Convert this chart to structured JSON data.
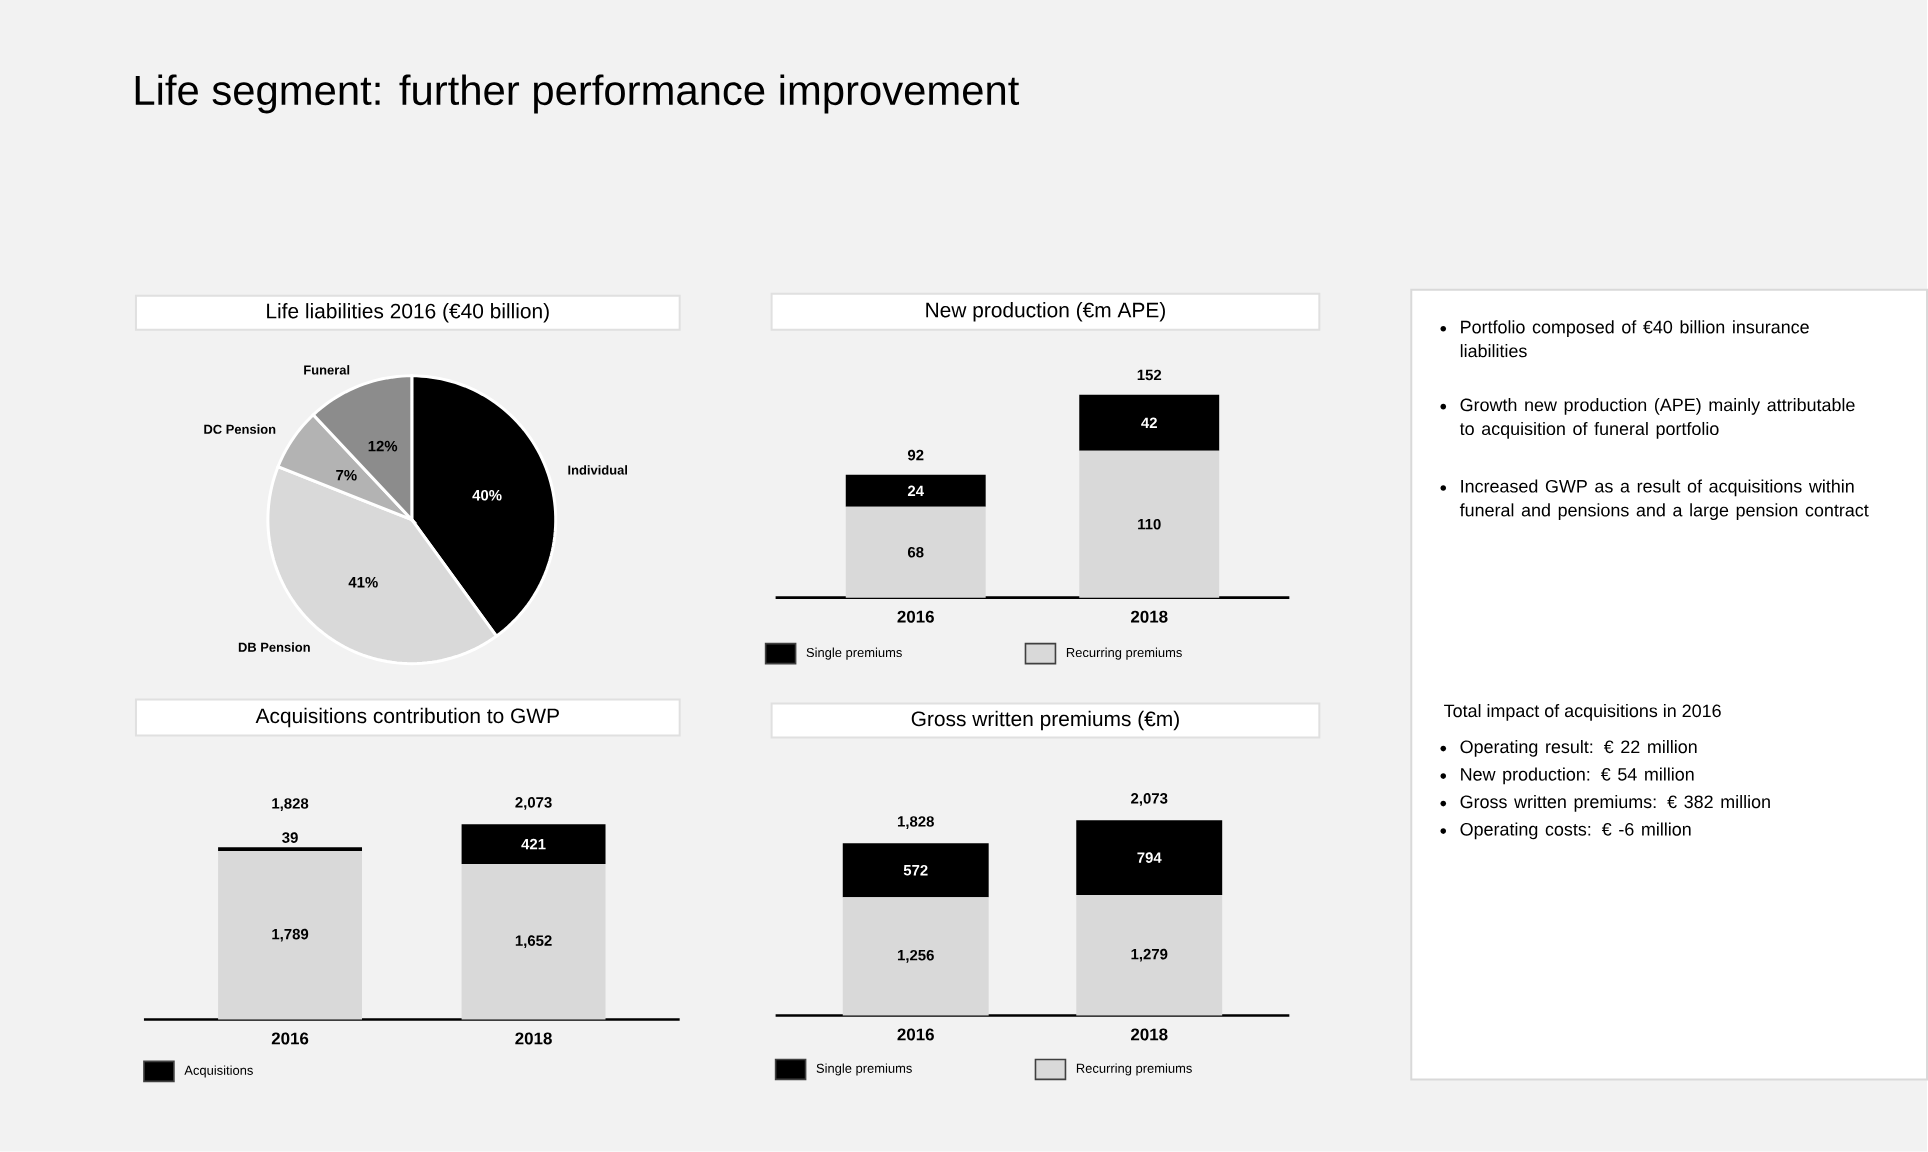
{
  "chart_data": [
    {
      "type": "pie",
      "title": "Life liabilities 2016 (€40 billion)",
      "categories": [
        "Individual",
        "DB Pension",
        "DC Pension",
        "Funeral"
      ],
      "values": [
        40,
        41,
        7,
        12
      ],
      "colors": [
        "#000000",
        "#d9d9d9",
        "#b3b3b3",
        "#8c8c8c"
      ],
      "value_labels": [
        "40%",
        "41%",
        "7%",
        "12%"
      ]
    },
    {
      "type": "bar",
      "title": "New production (€m APE)",
      "categories": [
        "2016",
        "2018"
      ],
      "stacked": true,
      "legend": "bottom",
      "totals": [
        "92",
        "152"
      ],
      "series": [
        {
          "name": "Recurring premiums",
          "color": "#d9d9d9",
          "values": [
            68,
            110
          ],
          "value_labels": [
            "68",
            "110"
          ]
        },
        {
          "name": "Single premiums",
          "color": "#000000",
          "values": [
            24,
            42
          ],
          "value_labels": [
            "24",
            "42"
          ]
        }
      ]
    },
    {
      "type": "bar",
      "title": "Acquisitions contribution to GWP",
      "categories": [
        "2016",
        "2018"
      ],
      "stacked": true,
      "legend": "bottom",
      "totals": [
        "1,828",
        "2,073"
      ],
      "series": [
        {
          "color": "#d9d9d9",
          "values": [
            1789,
            1652
          ],
          "value_labels": [
            "1,789",
            "1,652"
          ]
        },
        {
          "name": "Acquisitions",
          "color": "#000000",
          "values": [
            39,
            421
          ],
          "value_labels": [
            "39",
            "421"
          ]
        }
      ]
    },
    {
      "type": "bar",
      "title": "Gross written premiums (€m)",
      "categories": [
        "2016",
        "2018"
      ],
      "stacked": true,
      "legend": "bottom",
      "totals": [
        "1,828",
        "2,073"
      ],
      "series": [
        {
          "name": "Recurring premiums",
          "color": "#d9d9d9",
          "values": [
            1256,
            1279
          ],
          "value_labels": [
            "1,256",
            "1,279"
          ]
        },
        {
          "name": "Single premiums",
          "color": "#000000",
          "values": [
            572,
            794
          ],
          "value_labels": [
            "572",
            "794"
          ]
        }
      ]
    },
    {
      "type": "other",
      "title": "Life segment: further performance improvement",
      "annotations": [
        "Portfolio composed of €40 billion insurance liabilities",
        "Growth new production (APE) mainly attributable to acquisition of funeral portfolio",
        "Increased GWP as a result of acquisitions within funeral and pensions and a large pension contract"
      ]
    },
    {
      "type": "other",
      "title": "Total impact of acquisitions in 2016",
      "annotations": [
        "Operating result: € 22 million",
        "New production: € 54 million",
        "Gross written premiums: € 382 million",
        "Operating costs: € -6 million"
      ]
    }
  ]
}
